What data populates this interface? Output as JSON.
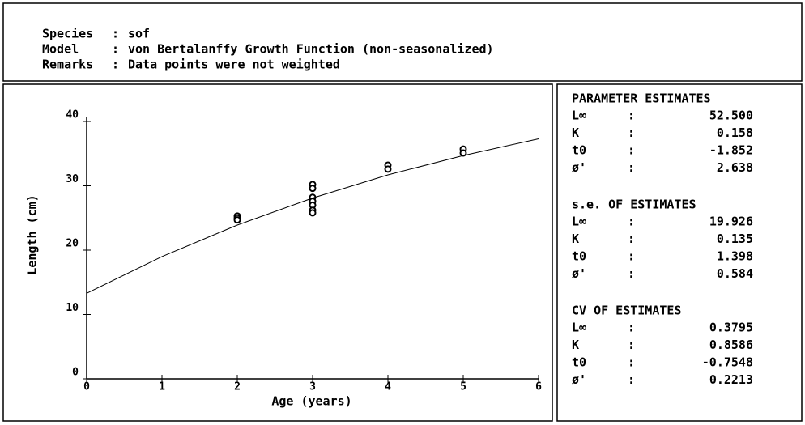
{
  "header": {
    "fields": [
      [
        "Species",
        ":",
        "sof"
      ],
      [
        "Model",
        ":",
        "von Bertalanffy Growth Function (non-seasonalized)"
      ],
      [
        "Remarks",
        ":",
        "Data points were not weighted"
      ]
    ]
  },
  "chart_data": {
    "type": "scatter",
    "x_label": "Age (years)",
    "y_label": "Length (cm)",
    "xlim": [
      0,
      6
    ],
    "ylim": [
      0,
      40
    ],
    "xticks": [
      0,
      1,
      2,
      3,
      4,
      5,
      6
    ],
    "yticks": [
      0,
      10,
      20,
      30,
      40
    ],
    "series": [
      {
        "type": "scatter",
        "color": "#000000",
        "x": [
          2,
          2,
          2,
          3,
          3,
          3,
          3,
          3,
          3,
          3,
          4,
          4,
          5,
          5
        ],
        "values": [
          25.3,
          25,
          24.7,
          30.2,
          29.6,
          28.2,
          27.6,
          27,
          26.2,
          25.8,
          33.2,
          32.6,
          35.7,
          35.1
        ]
      },
      {
        "type": "line",
        "color": "#000000",
        "x": [
          0,
          1,
          2,
          3,
          4,
          5,
          6
        ],
        "values": [
          13.3,
          19.0,
          23.9,
          28.1,
          31.7,
          34.7,
          37.3
        ]
      }
    ]
  },
  "table": {
    "sections": [
      {
        "title": "PARAMETER ESTIMATES",
        "rows": [
          [
            "L∞",
            ":",
            "52.500"
          ],
          [
            "K",
            ":",
            "0.158"
          ],
          [
            "t0",
            ":",
            "-1.852"
          ],
          [
            "ø'",
            ":",
            "2.638"
          ]
        ]
      },
      {
        "title": "s.e. OF ESTIMATES",
        "rows": [
          [
            "L∞",
            ":",
            "19.926"
          ],
          [
            "K",
            ":",
            "0.135"
          ],
          [
            "t0",
            ":",
            "1.398"
          ],
          [
            "ø'",
            ":",
            "0.584"
          ]
        ]
      },
      {
        "title": "CV OF ESTIMATES",
        "rows": [
          [
            "L∞",
            ":",
            "0.3795"
          ],
          [
            "K",
            ":",
            "0.8586"
          ],
          [
            "t0",
            ":",
            "-0.7548"
          ],
          [
            "ø'",
            ":",
            "0.2213"
          ]
        ]
      }
    ]
  }
}
